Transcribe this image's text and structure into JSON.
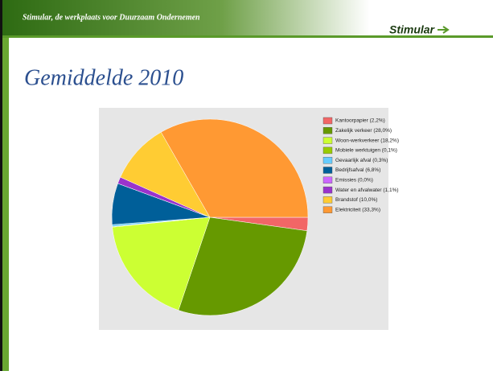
{
  "header": {
    "tagline": "Stimular, de werkplaats voor Duurzaam Ondernemen",
    "logo": "Stimular"
  },
  "chart_data": {
    "type": "pie",
    "title": "Gemiddelde 2010",
    "categories": [
      "Kantoorpapier (2,2%)",
      "Zakelijk verkeer (28,0%)",
      "Woon-werkverkeer (18,2%)",
      "Mobiele werktuigen (0,1%)",
      "Gevaarlijk afval (0,3%)",
      "Bedrijfsafval (6,8%)",
      "Emissies (0,0%)",
      "Water en afvalwater (1,1%)",
      "Brandstof (10,0%)",
      "Elektriciteit (33,3%)"
    ],
    "values": [
      2.2,
      28.0,
      18.2,
      0.1,
      0.3,
      6.8,
      0.0,
      1.1,
      10.0,
      33.3
    ],
    "colors": [
      "#f26666",
      "#669900",
      "#ccff33",
      "#99cc00",
      "#66ccff",
      "#005f99",
      "#cc66ff",
      "#9933cc",
      "#ffcc33",
      "#ff9933"
    ],
    "legend": "right"
  }
}
